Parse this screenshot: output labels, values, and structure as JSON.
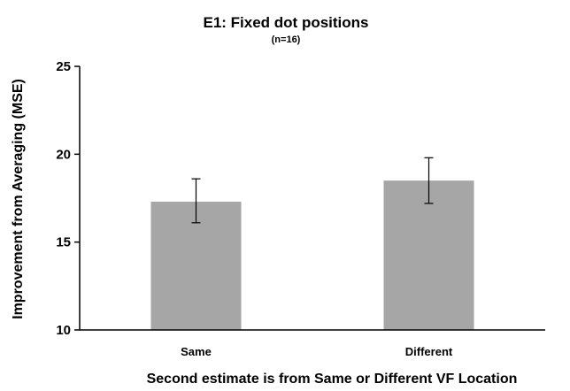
{
  "chart_data": {
    "type": "bar",
    "title": "E1: Fixed dot positions",
    "subtitle": "(n=16)",
    "xlabel": "Second estimate is from Same or Different VF Location",
    "ylabel": "Improvement from Averaging (MSE)",
    "categories": [
      "Same",
      "Different"
    ],
    "values": [
      17.3,
      18.5
    ],
    "error_low": [
      16.1,
      17.2
    ],
    "error_high": [
      18.6,
      19.8
    ],
    "ylim": [
      10,
      25
    ],
    "yticks": [
      10,
      15,
      20,
      25
    ],
    "grid": false,
    "bar_color": "#a6a6a6"
  }
}
